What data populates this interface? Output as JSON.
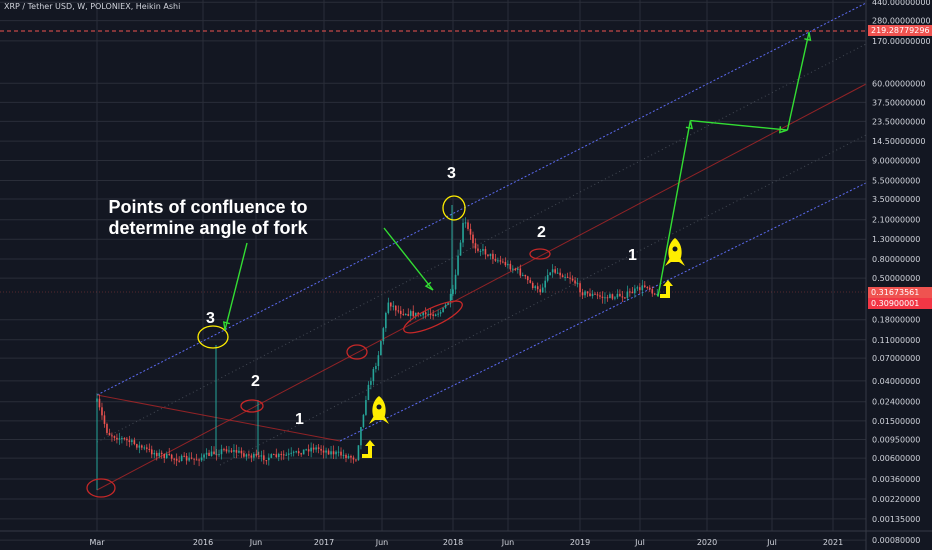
{
  "header": {
    "title": "XRP / Tether USD, W, POLONIEX, Heikin Ashi"
  },
  "colors": {
    "background": "#131722",
    "grid": "#2a2e39",
    "up": "#26a69a",
    "down": "#ef5350",
    "channel_outer": "#5c6bf2",
    "channel_mid": "#c62828",
    "arrow": "#33dd33",
    "highlight": "#ffee00"
  },
  "annotation": {
    "text": "Points of confluence to determine angle of fork",
    "line1": "Points of confluence to",
    "line2": "determine angle of fork"
  },
  "labels": [
    {
      "text": "3",
      "id": "label-3-2016"
    },
    {
      "text": "2",
      "id": "label-2-2016"
    },
    {
      "text": "1",
      "id": "label-1-2016"
    },
    {
      "text": "3",
      "id": "label-3-2018"
    },
    {
      "text": "2",
      "id": "label-2-2018"
    },
    {
      "text": "1",
      "id": "label-1-2019"
    }
  ],
  "price_tags": {
    "current": "0.31673561",
    "secondary": "0.30900001",
    "target": "219.28779296"
  },
  "chart_data": {
    "type": "candlestick",
    "title": "XRP / Tether USD, W, POLONIEX, Heikin Ashi",
    "y_scale": "log",
    "x_ticks": [
      "Mar",
      "2016",
      "Jun",
      "2017",
      "Jun",
      "2018",
      "Jun",
      "2019",
      "Jul",
      "2020",
      "Jul",
      "2021"
    ],
    "y_ticks": [
      "440.00000000",
      "280.00000000",
      "170.00000000",
      "60.00000000",
      "37.50000000",
      "23.50000000",
      "14.50000000",
      "9.00000000",
      "5.50000000",
      "3.50000000",
      "2.10000000",
      "1.30000000",
      "0.80000000",
      "0.50000000",
      "0.18000000",
      "0.11000000",
      "0.07000000",
      "0.04000000",
      "0.02400000",
      "0.01500000",
      "0.00950000",
      "0.00600000",
      "0.00360000",
      "0.00220000",
      "0.00135000",
      "0.00080000"
    ],
    "price_path": [
      [
        "2015-03",
        0.024
      ],
      [
        "2015-04",
        0.011
      ],
      [
        "2015-06",
        0.009
      ],
      [
        "2015-08",
        0.007
      ],
      [
        "2015-10",
        0.006
      ],
      [
        "2015-12",
        0.0058
      ],
      [
        "2016-03",
        0.0075
      ],
      [
        "2016-06",
        0.006
      ],
      [
        "2016-09",
        0.0065
      ],
      [
        "2016-11",
        0.0078
      ],
      [
        "2017-01",
        0.0068
      ],
      [
        "2017-03",
        0.006
      ],
      [
        "2017-04",
        0.03
      ],
      [
        "2017-05",
        0.07
      ],
      [
        "2017-06",
        0.28
      ],
      [
        "2017-07",
        0.22
      ],
      [
        "2017-09",
        0.2
      ],
      [
        "2017-11",
        0.22
      ],
      [
        "2017-12",
        0.35
      ],
      [
        "2018-01",
        2.1
      ],
      [
        "2018-02",
        1.1
      ],
      [
        "2018-04",
        0.8
      ],
      [
        "2018-06",
        0.6
      ],
      [
        "2018-08",
        0.35
      ],
      [
        "2018-09",
        0.62
      ],
      [
        "2018-11",
        0.5
      ],
      [
        "2018-12",
        0.35
      ],
      [
        "2019-02",
        0.31
      ],
      [
        "2019-04",
        0.33
      ],
      [
        "2019-06",
        0.42
      ],
      [
        "2019-07",
        0.317
      ]
    ],
    "projection": [
      [
        "2019-07",
        0.317
      ],
      [
        "2019-10",
        24
      ],
      [
        "2020-07",
        19
      ],
      [
        "2020-09",
        210
      ]
    ],
    "channel": "Pitchfork with outer lines through the marked points of confluence 1, 2, 3"
  }
}
